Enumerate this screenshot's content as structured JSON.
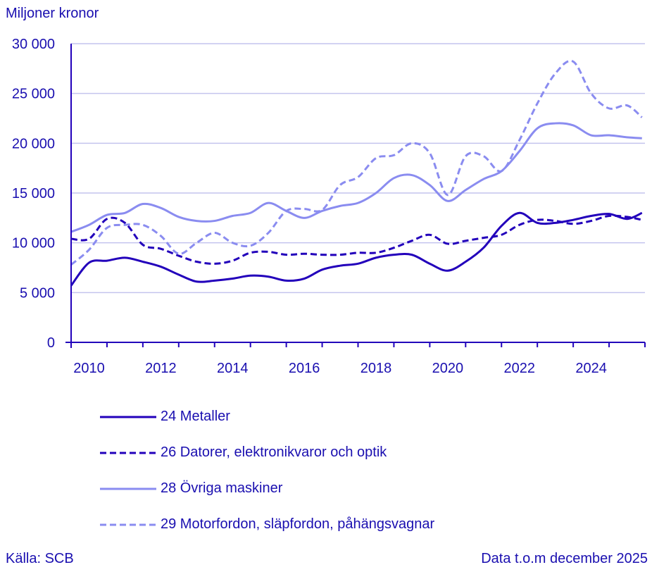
{
  "chart_data": {
    "type": "line",
    "ylabel": "Miljoner kronor",
    "ylim": [
      0,
      30000
    ],
    "yticks": [
      0,
      5000,
      10000,
      15000,
      20000,
      25000,
      30000
    ],
    "ytick_labels": [
      "0",
      "5 000",
      "10 000",
      "15 000",
      "20 000",
      "25 000",
      "30 000"
    ],
    "xlim": [
      "2010-01",
      "2025-12"
    ],
    "xtick_labels": [
      "2010",
      "2012",
      "2014",
      "2016",
      "2018",
      "2020",
      "2022",
      "2024"
    ],
    "grid": "horizontal",
    "legend_placement": "bottom",
    "x": [
      "2010-01",
      "2010-07",
      "2011-01",
      "2011-07",
      "2012-01",
      "2012-07",
      "2013-01",
      "2013-07",
      "2014-01",
      "2014-07",
      "2015-01",
      "2015-07",
      "2016-01",
      "2016-07",
      "2017-01",
      "2017-07",
      "2018-01",
      "2018-07",
      "2019-01",
      "2019-07",
      "2020-01",
      "2020-07",
      "2021-01",
      "2021-07",
      "2022-01",
      "2022-07",
      "2023-01",
      "2023-07",
      "2024-01",
      "2024-07",
      "2025-01",
      "2025-07",
      "2025-12"
    ],
    "series": [
      {
        "name": "24 Metaller",
        "color": "#2200bb",
        "dash": "solid",
        "values": [
          5700,
          8000,
          8200,
          8500,
          8100,
          7600,
          6800,
          6100,
          6200,
          6400,
          6700,
          6600,
          6200,
          6400,
          7300,
          7700,
          7900,
          8500,
          8800,
          8800,
          7900,
          7200,
          8100,
          9500,
          11700,
          13000,
          12000,
          12000,
          12300,
          12700,
          12900,
          12400,
          13000
        ]
      },
      {
        "name": "26 Datorer, elektronikvaror och optik",
        "color": "#2200bb",
        "dash": "dashed",
        "values": [
          10400,
          10400,
          12400,
          12000,
          9800,
          9400,
          8700,
          8100,
          7900,
          8200,
          9000,
          9100,
          8800,
          8900,
          8800,
          8800,
          9000,
          9000,
          9500,
          10200,
          10800,
          9900,
          10200,
          10500,
          10800,
          11800,
          12300,
          12200,
          11900,
          12200,
          12700,
          12600,
          12300
        ]
      },
      {
        "name": "28 Övriga maskiner",
        "color": "#8a8cf0",
        "dash": "solid",
        "values": [
          11100,
          11800,
          12800,
          13000,
          13900,
          13500,
          12600,
          12200,
          12200,
          12700,
          13000,
          14000,
          13200,
          12500,
          13200,
          13700,
          14000,
          15000,
          16500,
          16800,
          15800,
          14200,
          15300,
          16400,
          17200,
          19200,
          21500,
          22000,
          21800,
          20800,
          20800,
          20600,
          20500
        ]
      },
      {
        "name": "29 Motorfordon, släpfordon, påhängsvagnar",
        "color": "#8a8cf0",
        "dash": "dashed",
        "values": [
          7800,
          9300,
          11500,
          11800,
          11800,
          10700,
          8900,
          10000,
          11000,
          10000,
          9700,
          11000,
          13200,
          13400,
          13300,
          15800,
          16600,
          18500,
          18800,
          20000,
          19000,
          14800,
          18700,
          18700,
          17200,
          20300,
          24000,
          27000,
          28200,
          25000,
          23500,
          23800,
          22600
        ]
      }
    ]
  },
  "footer": {
    "source": "Källa: SCB",
    "data_info": "Data t.o.m december 2025"
  }
}
